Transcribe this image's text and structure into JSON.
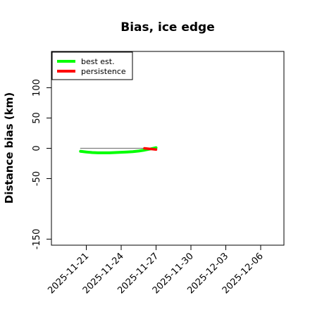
{
  "chart_data": {
    "type": "line",
    "title": "Bias, ice edge",
    "xlabel": "",
    "ylabel": "Distance bias (km)",
    "x_type": "date",
    "xlim": [
      "2025-11-18",
      "2025-12-08"
    ],
    "ylim": [
      -160,
      160
    ],
    "x_ticks": [
      "2025-11-21",
      "2025-11-24",
      "2025-11-27",
      "2025-11-30",
      "2025-12-03",
      "2025-12-06"
    ],
    "y_ticks": [
      -150,
      -50,
      0,
      50,
      100
    ],
    "grid": false,
    "legend_position": "top-left",
    "series": [
      {
        "name": "best est.",
        "color": "#00ff00",
        "x": [
          "2025-11-20T12:00",
          "2025-11-21T00:00",
          "2025-11-21T12:00",
          "2025-11-22T00:00",
          "2025-11-22T12:00",
          "2025-11-23T00:00",
          "2025-11-23T12:00",
          "2025-11-24T00:00",
          "2025-11-24T12:00",
          "2025-11-25T00:00",
          "2025-11-25T12:00",
          "2025-11-26T00:00",
          "2025-11-26T12:00",
          "2025-11-27T00:00"
        ],
        "y": [
          -5,
          -6,
          -7,
          -7.5,
          -7.5,
          -7.5,
          -7,
          -6.5,
          -6,
          -5.5,
          -4.5,
          -3,
          -1,
          1
        ]
      },
      {
        "name": "persistence",
        "color": "#ff0000",
        "x": [
          "2025-11-26T00:00",
          "2025-11-26T12:00",
          "2025-11-27T00:00"
        ],
        "y": [
          0,
          -1,
          -2
        ]
      },
      {
        "name": "",
        "color": "#808080",
        "x": [
          "2025-11-20T12:00",
          "2025-11-27T00:00"
        ],
        "y": [
          0,
          0
        ]
      }
    ]
  }
}
